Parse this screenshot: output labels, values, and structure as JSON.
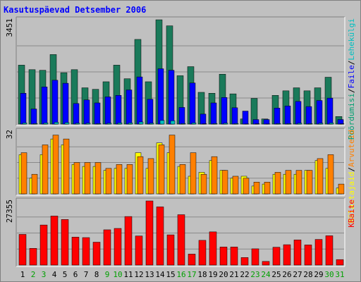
{
  "title": "Kasutuspäevad Detsember 2006",
  "colors": {
    "background": "#c0c0c0",
    "title": "#0000ff",
    "grid": "#8a8a8a",
    "visits": "#1a7a5a",
    "files": "#0000ff",
    "hits": "#00a070",
    "kbytes": "#ff0000",
    "sites": "#ff8000",
    "visitors": "#ffff00",
    "weekend_label": "#00a000",
    "weekday_label": "#000000"
  },
  "chart_data": [
    {
      "type": "bar",
      "name": "top",
      "ymax_label": "3451",
      "right_label_parts": [
        {
          "text": "Pöördumisi",
          "color": "#00a070"
        },
        {
          "text": "/",
          "color": "#000000"
        },
        {
          "text": "Faile",
          "color": "#0000ff"
        },
        {
          "text": "/",
          "color": "#000000"
        },
        {
          "text": "Lehekülgi",
          "color": "#00c0c0"
        }
      ],
      "series": [
        {
          "name": "Pöördumisi",
          "color": "#1a7a5a",
          "values": [
            1950,
            1800,
            1780,
            2300,
            1700,
            1800,
            1200,
            1150,
            1400,
            1950,
            1500,
            2800,
            1400,
            3450,
            3250,
            1600,
            1900,
            1050,
            1020,
            1650,
            1000,
            170,
            850,
            170,
            950,
            1100,
            1200,
            1100,
            1200,
            1550,
            250
          ]
        },
        {
          "name": "Faile",
          "color": "#0000ff",
          "values": [
            1020,
            500,
            1230,
            1450,
            1350,
            680,
            800,
            700,
            900,
            950,
            1130,
            1560,
            820,
            1830,
            1780,
            550,
            1360,
            330,
            700,
            880,
            540,
            430,
            150,
            150,
            530,
            600,
            750,
            580,
            780,
            860,
            150
          ]
        },
        {
          "name": "Lehekülgi",
          "color": "#00c0c0",
          "values": [
            40,
            20,
            40,
            60,
            50,
            30,
            30,
            20,
            30,
            40,
            40,
            70,
            30,
            120,
            110,
            20,
            40,
            10,
            20,
            30,
            20,
            5,
            10,
            5,
            20,
            20,
            30,
            20,
            30,
            40,
            10
          ]
        }
      ],
      "ylim": [
        0,
        3451
      ]
    },
    {
      "type": "bar",
      "name": "middle",
      "ymax_label": "32",
      "right_label_parts": [
        {
          "text": "Külastajaid",
          "color": "#ffff00"
        },
        {
          "text": "/",
          "color": "#000000"
        },
        {
          "text": "Arvuteid",
          "color": "#ff8000"
        }
      ],
      "series": [
        {
          "name": "Külastajaid",
          "color": "#ffff00",
          "values": [
            20,
            8,
            20,
            28,
            25,
            15,
            14,
            14,
            12,
            13,
            13,
            21,
            13,
            26,
            21,
            14,
            9,
            11,
            17,
            12,
            8,
            9,
            4,
            5,
            10,
            10,
            10,
            12,
            17,
            13,
            3
          ]
        },
        {
          "name": "Arvuteid",
          "color": "#ff8000",
          "values": [
            21,
            10,
            25,
            30,
            28,
            16,
            16,
            16,
            13,
            15,
            15,
            19,
            18,
            25,
            30,
            15,
            21,
            10,
            19,
            12,
            9,
            8,
            6,
            6,
            11,
            12,
            12,
            12,
            18,
            20,
            5
          ]
        }
      ],
      "ylim": [
        0,
        32
      ]
    },
    {
      "type": "bar",
      "name": "bottom",
      "ymax_label": "27355",
      "right_label_parts": [
        {
          "text": "KBaite",
          "color": "#ff0000"
        }
      ],
      "series": [
        {
          "name": "KBaite",
          "color": "#ff0000",
          "values": [
            13400,
            7300,
            17500,
            21400,
            19900,
            12200,
            12000,
            10000,
            15400,
            16000,
            21200,
            12700,
            28000,
            25400,
            13200,
            22000,
            4800,
            10800,
            14500,
            7900,
            7900,
            3300,
            7100,
            1600,
            7800,
            8900,
            11000,
            8800,
            11200,
            12800,
            2400
          ]
        }
      ],
      "ylim": [
        0,
        28000
      ]
    }
  ],
  "days": [
    {
      "label": "1",
      "weekend": false
    },
    {
      "label": "2",
      "weekend": true
    },
    {
      "label": "3",
      "weekend": true
    },
    {
      "label": "4",
      "weekend": false
    },
    {
      "label": "5",
      "weekend": false
    },
    {
      "label": "6",
      "weekend": false
    },
    {
      "label": "7",
      "weekend": false
    },
    {
      "label": "8",
      "weekend": false
    },
    {
      "label": "9",
      "weekend": true
    },
    {
      "label": "10",
      "weekend": true
    },
    {
      "label": "11",
      "weekend": false
    },
    {
      "label": "12",
      "weekend": false
    },
    {
      "label": "13",
      "weekend": false
    },
    {
      "label": "14",
      "weekend": false
    },
    {
      "label": "15",
      "weekend": false
    },
    {
      "label": "16",
      "weekend": true
    },
    {
      "label": "17",
      "weekend": true
    },
    {
      "label": "18",
      "weekend": false
    },
    {
      "label": "19",
      "weekend": false
    },
    {
      "label": "20",
      "weekend": false
    },
    {
      "label": "21",
      "weekend": false
    },
    {
      "label": "22",
      "weekend": false
    },
    {
      "label": "23",
      "weekend": true
    },
    {
      "label": "24",
      "weekend": true
    },
    {
      "label": "25",
      "weekend": false
    },
    {
      "label": "26",
      "weekend": false
    },
    {
      "label": "27",
      "weekend": false
    },
    {
      "label": "28",
      "weekend": false
    },
    {
      "label": "29",
      "weekend": false
    },
    {
      "label": "30",
      "weekend": true
    },
    {
      "label": "31",
      "weekend": true
    }
  ]
}
